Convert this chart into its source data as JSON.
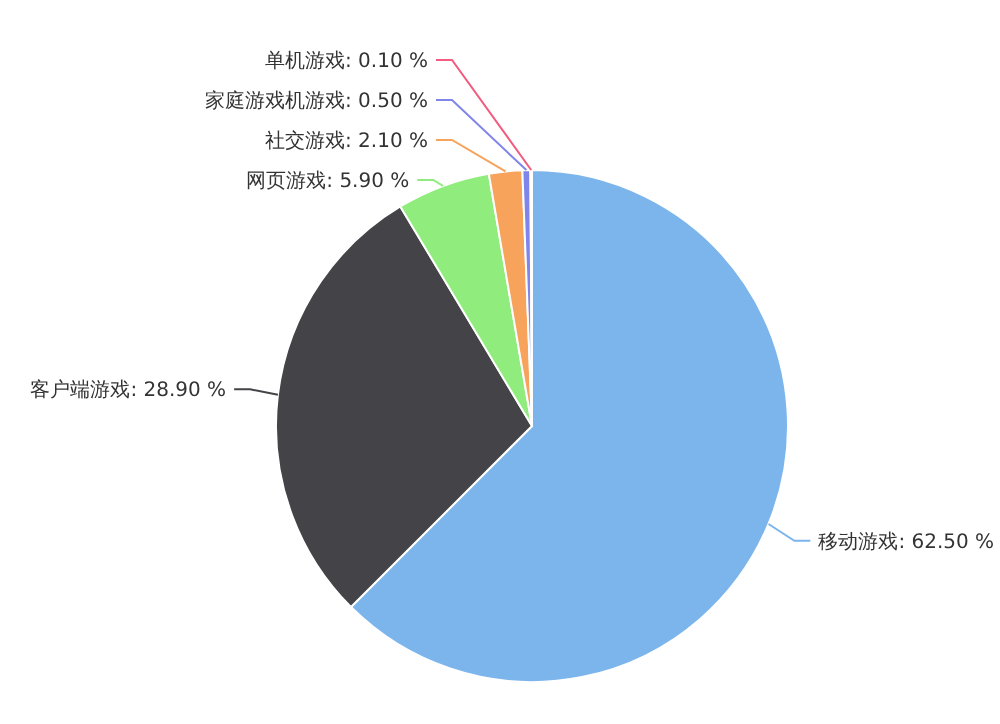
{
  "chart_data": {
    "type": "pie",
    "categories": [
      "移动游戏",
      "客户端游戏",
      "网页游戏",
      "社交游戏",
      "家庭游戏机游戏",
      "单机游戏"
    ],
    "values": [
      62.5,
      28.9,
      5.9,
      2.1,
      0.5,
      0.1
    ],
    "value_labels": [
      "62.50 %",
      "28.90 %",
      "5.90 %",
      "2.10 %",
      "0.50 %",
      "0.10 %"
    ],
    "colors": [
      "#7cb5ec",
      "#434348",
      "#90ed7d",
      "#f7a35c",
      "#8085e9",
      "#f15c80"
    ],
    "legend": false
  }
}
